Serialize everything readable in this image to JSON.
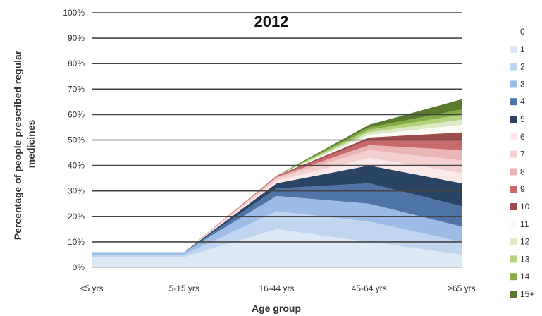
{
  "chart_data": {
    "type": "area",
    "stacked": true,
    "title": "2012",
    "xlabel": "Age group",
    "ylabel_lines": [
      "Percentage of people prescribed regular",
      "medicines"
    ],
    "categories": [
      "<5 yrs",
      "5-15 yrs",
      "16-44 yrs",
      "45-64 yrs",
      "≥65 yrs"
    ],
    "ylim": [
      0,
      100
    ],
    "yticks": [
      "0%",
      "10%",
      "20%",
      "30%",
      "40%",
      "50%",
      "60%",
      "70%",
      "80%",
      "90%",
      "100%"
    ],
    "grid": true,
    "legend_position": "right",
    "series": [
      {
        "name": "0",
        "color": "#ffffff",
        "values": [
          0,
          0,
          0,
          0,
          0
        ]
      },
      {
        "name": "1",
        "color": "#dce8f6",
        "values": [
          4,
          4,
          15,
          10,
          5
        ]
      },
      {
        "name": "2",
        "color": "#c0d5ef",
        "values": [
          1,
          1,
          7,
          8,
          5
        ]
      },
      {
        "name": "3",
        "color": "#9bbde5",
        "values": [
          1,
          1,
          6,
          7,
          6
        ]
      },
      {
        "name": "4",
        "color": "#4f75a6",
        "values": [
          0,
          0,
          3,
          8,
          8
        ]
      },
      {
        "name": "5",
        "color": "#2a4465",
        "values": [
          0,
          0,
          2,
          7,
          9
        ]
      },
      {
        "name": "6",
        "color": "#fbe9e9",
        "values": [
          0,
          0,
          1,
          3,
          4
        ]
      },
      {
        "name": "7",
        "color": "#f5d0d0",
        "values": [
          0,
          0,
          1,
          3,
          5
        ]
      },
      {
        "name": "8",
        "color": "#eab5b5",
        "values": [
          0,
          0,
          0.5,
          2,
          4
        ]
      },
      {
        "name": "9",
        "color": "#c96a6a",
        "values": [
          0,
          0,
          0.3,
          2,
          4
        ]
      },
      {
        "name": "10",
        "color": "#9e4b4b",
        "values": [
          0,
          0,
          0.2,
          1,
          3
        ]
      },
      {
        "name": "11",
        "color": "#fafbf5",
        "values": [
          0,
          0,
          0,
          1,
          3
        ]
      },
      {
        "name": "12",
        "color": "#dfe9c6",
        "values": [
          0,
          0,
          0,
          1,
          2
        ]
      },
      {
        "name": "13",
        "color": "#b5d27f",
        "values": [
          0,
          0,
          0,
          1,
          2
        ]
      },
      {
        "name": "14",
        "color": "#86ad45",
        "values": [
          0,
          0,
          0,
          1,
          2
        ]
      },
      {
        "name": "15+",
        "color": "#5a7a2e",
        "values": [
          0,
          0,
          0,
          1,
          4
        ]
      }
    ]
  }
}
